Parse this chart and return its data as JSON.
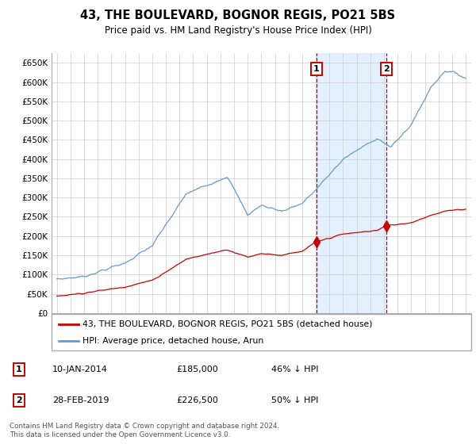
{
  "title": "43, THE BOULEVARD, BOGNOR REGIS, PO21 5BS",
  "subtitle": "Price paid vs. HM Land Registry's House Price Index (HPI)",
  "ylim": [
    0,
    675000
  ],
  "sale1_t": 2014.04,
  "sale1_price": 185000,
  "sale1_label": "10-JAN-2014",
  "sale1_pct": "46% ↓ HPI",
  "sale2_t": 2019.16,
  "sale2_price": 226500,
  "sale2_label": "28-FEB-2019",
  "sale2_pct": "50% ↓ HPI",
  "legend_property": "43, THE BOULEVARD, BOGNOR REGIS, PO21 5BS (detached house)",
  "legend_hpi": "HPI: Average price, detached house, Arun",
  "footnote": "Contains HM Land Registry data © Crown copyright and database right 2024.\nThis data is licensed under the Open Government Licence v3.0.",
  "property_color": "#cc0000",
  "hpi_color": "#6699cc",
  "shade_color": "#ddeeff",
  "vline_color": "#cc0000",
  "grid_color": "#cccccc",
  "background_color": "#ffffff",
  "hpi_anchors_t": [
    1995.0,
    1997.0,
    2000.0,
    2002.0,
    2004.5,
    2007.5,
    2009.0,
    2010.0,
    2011.5,
    2013.0,
    2014.0,
    2016.0,
    2018.5,
    2019.5,
    2021.0,
    2022.5,
    2023.5,
    2024.5,
    2025.0
  ],
  "hpi_anchors_v": [
    88000,
    95000,
    130000,
    175000,
    310000,
    355000,
    255000,
    280000,
    265000,
    285000,
    320000,
    400000,
    455000,
    430000,
    490000,
    590000,
    630000,
    620000,
    610000
  ],
  "prop_anchors_t": [
    1995.0,
    1997.0,
    2000.0,
    2002.0,
    2004.5,
    2007.5,
    2009.0,
    2010.0,
    2011.5,
    2013.0,
    2014.04,
    2016.0,
    2018.5,
    2019.16,
    2021.0,
    2022.5,
    2023.5,
    2024.5,
    2025.0
  ],
  "prop_anchors_v": [
    44000,
    52000,
    68000,
    85000,
    140000,
    165000,
    145000,
    155000,
    150000,
    160000,
    185000,
    205000,
    215000,
    226500,
    235000,
    255000,
    265000,
    268000,
    270000
  ]
}
